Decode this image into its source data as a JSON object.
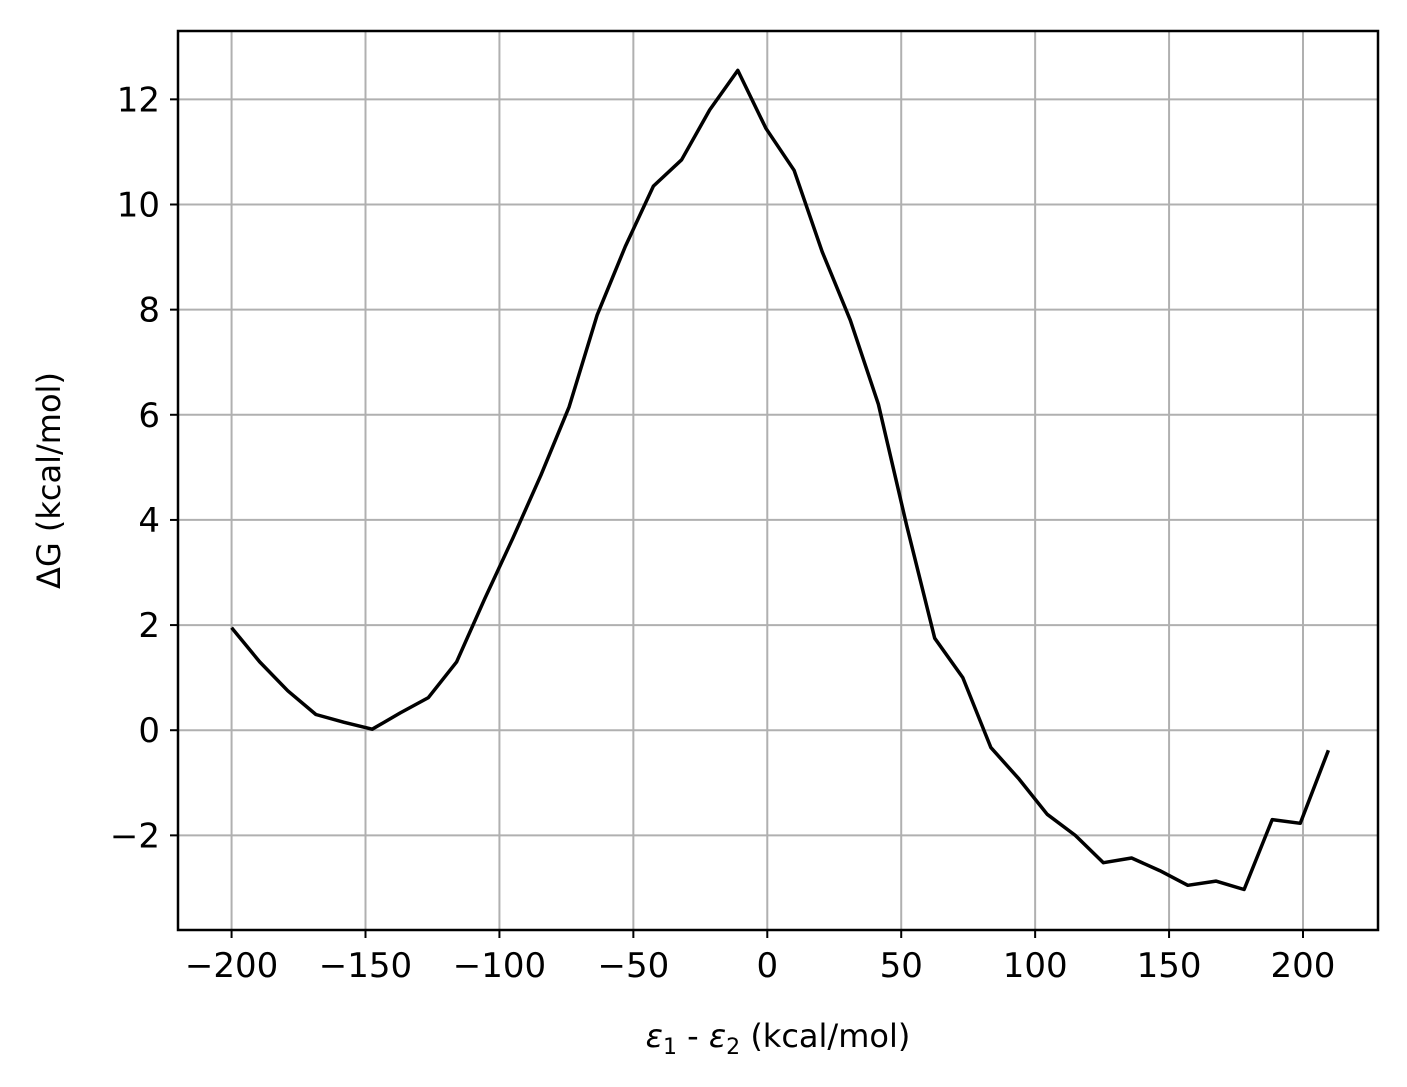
{
  "chart_data": {
    "type": "line",
    "title": "",
    "xlabel": {
      "base": "ε",
      "sub1": "1",
      "separator": " - ",
      "sub2": "2",
      "suffix": " (kcal/mol)"
    },
    "ylabel": "ΔG (kcal/mol)",
    "xlim": [
      -220,
      228
    ],
    "ylim": [
      -3.8,
      13.3
    ],
    "xticks": [
      -200,
      -150,
      -100,
      -50,
      0,
      50,
      100,
      150,
      200
    ],
    "xtick_labels": [
      "−200",
      "−150",
      "−100",
      "−50",
      "0",
      "50",
      "100",
      "150",
      "200"
    ],
    "yticks": [
      -2,
      0,
      2,
      4,
      6,
      8,
      10,
      12
    ],
    "ytick_labels": [
      "−2",
      "0",
      "2",
      "4",
      "6",
      "8",
      "10",
      "12"
    ],
    "grid": true,
    "series": [
      {
        "color": "#000000",
        "x": [
          -200,
          -189.5,
          -179,
          -168.5,
          -158,
          -147.5,
          -137,
          -126.5,
          -116,
          -105.5,
          -95,
          -84.5,
          -74,
          -63.5,
          -53,
          -42.5,
          -32,
          -21.5,
          -11,
          -0.5,
          10,
          20.5,
          31,
          41.5,
          52,
          62.5,
          73,
          83.5,
          94,
          104.5,
          115,
          125.5,
          136,
          146.5,
          157,
          167.5,
          178,
          188.5,
          199,
          209.5
        ],
        "y": [
          1.95,
          1.3,
          0.75,
          0.3,
          0.15,
          0.02,
          0.33,
          0.62,
          1.3,
          2.5,
          3.65,
          4.85,
          6.15,
          7.9,
          9.2,
          10.35,
          10.85,
          11.8,
          12.55,
          11.45,
          10.65,
          9.1,
          7.8,
          6.2,
          3.9,
          1.75,
          1.0,
          -0.33,
          -0.93,
          -1.6,
          -2.0,
          -2.52,
          -2.43,
          -2.67,
          -2.95,
          -2.87,
          -3.03,
          -1.7,
          -1.77,
          -0.38
        ]
      }
    ]
  }
}
